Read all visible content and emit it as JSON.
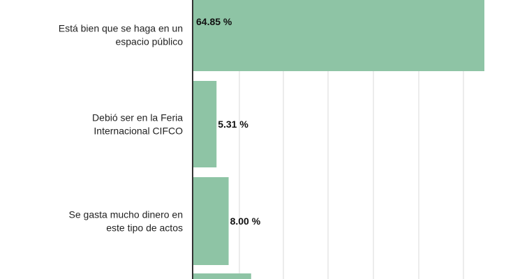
{
  "chart_data": {
    "type": "bar",
    "orientation": "horizontal",
    "categories": [
      [
        "Está bien que se haga en un",
        "espacio público"
      ],
      [
        "Debió ser en la Feria",
        "Internacional CIFCO"
      ],
      [
        "Se gasta mucho dinero en",
        "este tipo de actos"
      ],
      []
    ],
    "values": [
      64.85,
      5.31,
      8.0,
      13.0
    ],
    "value_labels": [
      "64.85 %",
      "5.31 %",
      "8.00 %",
      ""
    ],
    "title": "",
    "xlabel": "",
    "ylabel": "",
    "xlim": [
      0,
      70
    ],
    "grid": true,
    "legend": "none",
    "colors": {
      "bar": "#8ec4a5",
      "grid": "#d9d9d9",
      "axis": "#333333"
    }
  }
}
